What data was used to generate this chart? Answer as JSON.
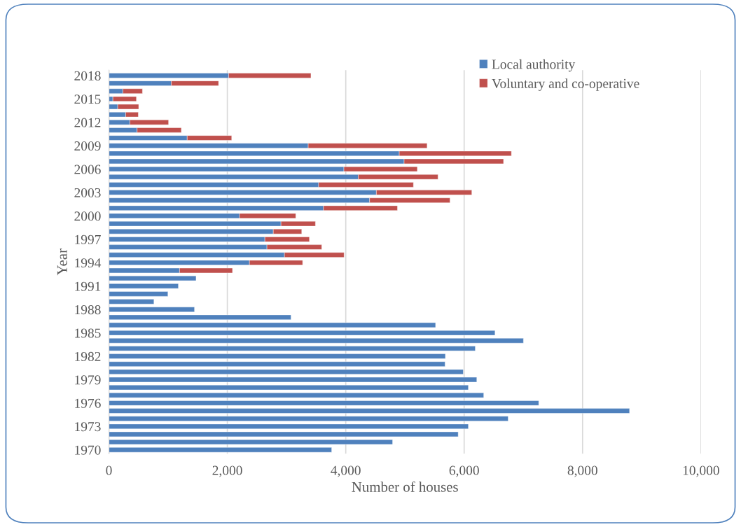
{
  "chart_data": {
    "type": "bar",
    "orientation": "horizontal",
    "stacked": true,
    "xlabel": "Number of houses",
    "ylabel": "Year",
    "categories": [
      "2018",
      null,
      null,
      "2015",
      null,
      null,
      "2012",
      null,
      null,
      "2009",
      null,
      null,
      "2006",
      null,
      null,
      "2003",
      null,
      null,
      "2000",
      null,
      null,
      "1997",
      null,
      null,
      "1994",
      null,
      null,
      "1991",
      null,
      null,
      "1988",
      null,
      null,
      "1985",
      null,
      null,
      "1982",
      null,
      null,
      "1979",
      null,
      null,
      "1976",
      null,
      null,
      "1973",
      null,
      null,
      "1970"
    ],
    "series": [
      {
        "name": "Local authority",
        "color": "#4f81bd",
        "values": [
          2022,
          1054,
          236,
          67,
          149,
          283,
          354,
          476,
          1322,
          3366,
          4904,
          4986,
          3969,
          4211,
          3542,
          4517,
          4403,
          3624,
          2206,
          2906,
          2776,
          2634,
          2669,
          2965,
          2374,
          1193,
          1472,
          1173,
          996,
          760,
          1445,
          3075,
          5517,
          6521,
          7001,
          6188,
          5683,
          5677,
          5985,
          6213,
          6071,
          6330,
          7260,
          8793,
          6743,
          6071,
          5899,
          4791,
          3762
        ]
      },
      {
        "name": "Voluntary and co-operative",
        "color": "#c0504d",
        "values": [
          1390,
          798,
          330,
          397,
          354,
          213,
          653,
          747,
          751,
          2008,
          1894,
          1679,
          1240,
          1347,
          1601,
          1612,
          1358,
          1249,
          950,
          582,
          480,
          752,
          925,
          1007,
          898,
          894,
          null,
          null,
          null,
          null,
          null,
          null,
          null,
          null,
          null,
          null,
          null,
          null,
          null,
          null,
          null,
          null,
          null,
          null,
          null,
          null,
          null,
          null,
          null
        ]
      }
    ],
    "xlim": [
      0,
      10000
    ],
    "xticks": [
      0,
      {
        "value": 2000,
        "label": "2,000"
      },
      {
        "value": 4000,
        "label": "4,000"
      },
      {
        "value": 6000,
        "label": "6,000"
      },
      {
        "value": 8000,
        "label": "8,000"
      },
      {
        "value": 10000,
        "label": "10,000"
      }
    ],
    "grid": "x",
    "legend": "top right"
  }
}
